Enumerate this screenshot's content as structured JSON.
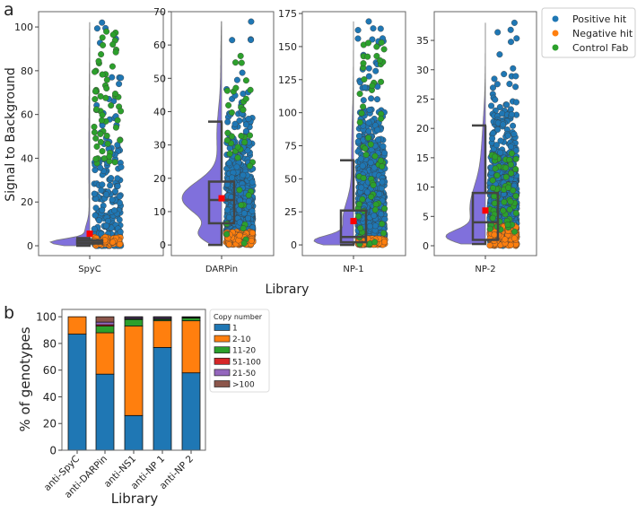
{
  "panel_labels": {
    "a": "a",
    "b": "b"
  },
  "chart_data": [
    {
      "type": "violin-box-strip",
      "ylabel": "Signal to Background",
      "xlabel": "Library",
      "legend": {
        "placement": "right",
        "entries": [
          {
            "label": "Positive hit",
            "color": "#1f77b4"
          },
          {
            "label": "Negative hit",
            "color": "#ff7f0e"
          },
          {
            "label": "Control Fab",
            "color": "#2ca02c"
          }
        ]
      },
      "violin_color": "#8070dc",
      "mean_marker_color": "#ff0000",
      "panels": [
        {
          "category": "SpyC",
          "ylim": [
            -4.5,
            107
          ],
          "yticks": [
            0,
            20,
            40,
            60,
            80,
            100
          ],
          "box": {
            "whisker_low": 0,
            "q1": 1,
            "median": 1.5,
            "q3": 2.5,
            "whisker_high": 3.5
          },
          "mean": 5.5,
          "max": 102,
          "density_modes": [
            [
              1.5,
              1.6,
              1
            ],
            [
              6,
              4,
              0.12
            ],
            [
              40,
              30,
              0.025
            ]
          ]
        },
        {
          "category": "DARPin",
          "ylim": [
            -3.2,
            70
          ],
          "yticks": [
            0,
            10,
            20,
            30,
            40,
            50,
            60,
            70
          ],
          "box": {
            "whisker_low": 0,
            "q1": 6.5,
            "median": 13.5,
            "q3": 19,
            "whisker_high": 37
          },
          "mean": 14,
          "max": 67,
          "density_modes": [
            [
              14,
              5,
              1
            ],
            [
              3,
              2.5,
              0.5
            ],
            [
              33,
              8,
              0.12
            ],
            [
              55,
              8,
              0.02
            ]
          ]
        },
        {
          "category": "NP-1",
          "ylim": [
            -8.1,
            176.4
          ],
          "yticks": [
            0,
            25,
            50,
            75,
            100,
            125,
            150,
            175
          ],
          "box": {
            "whisker_low": 0,
            "q1": 2,
            "median": 6,
            "q3": 26,
            "whisker_high": 64
          },
          "mean": 18,
          "max": 169,
          "density_modes": [
            [
              3,
              4,
              1
            ],
            [
              18,
              14,
              0.3
            ],
            [
              65,
              30,
              0.06
            ]
          ]
        },
        {
          "category": "NP-2",
          "ylim": [
            -1.68,
            39.9
          ],
          "yticks": [
            0,
            5,
            10,
            15,
            20,
            25,
            30,
            35
          ],
          "box": {
            "whisker_low": 0.3,
            "q1": 1,
            "median": 4,
            "q3": 9,
            "whisker_high": 20.5
          },
          "mean": 6,
          "max": 38,
          "density_modes": [
            [
              1.5,
              1.2,
              1
            ],
            [
              6,
              4,
              0.45
            ],
            [
              15,
              6,
              0.12
            ]
          ]
        }
      ]
    },
    {
      "type": "bar",
      "stacked": true,
      "ylabel": "% of genotypes",
      "xlabel": "Library",
      "ylim": [
        0,
        105.5
      ],
      "yticks": [
        0,
        20,
        40,
        60,
        80,
        100
      ],
      "categories": [
        "anti-SpyC",
        "anti-DARPin",
        "anti-NS1",
        "anti-NP 1",
        "anti-NP 2"
      ],
      "legend": {
        "title": "Copy number",
        "placement": "right"
      },
      "series": [
        {
          "name": "1",
          "color": "#1f77b4",
          "values": [
            87,
            57,
            26,
            77,
            58
          ]
        },
        {
          "name": "2-10",
          "color": "#ff7f0e",
          "values": [
            13,
            31,
            67,
            20,
            39
          ]
        },
        {
          "name": "11-20",
          "color": "#2ca02c",
          "values": [
            0,
            5,
            5,
            1,
            2
          ]
        },
        {
          "name": "51-100",
          "color": "#d62728",
          "values": [
            0,
            1,
            0.5,
            0.5,
            0
          ]
        },
        {
          "name": "21-50",
          "color": "#9467bd",
          "values": [
            0,
            2,
            1,
            1,
            0.5
          ]
        },
        {
          "name": ">100",
          "color": "#8c564b",
          "values": [
            0,
            4,
            0.5,
            0.5,
            0.5
          ]
        }
      ]
    }
  ]
}
